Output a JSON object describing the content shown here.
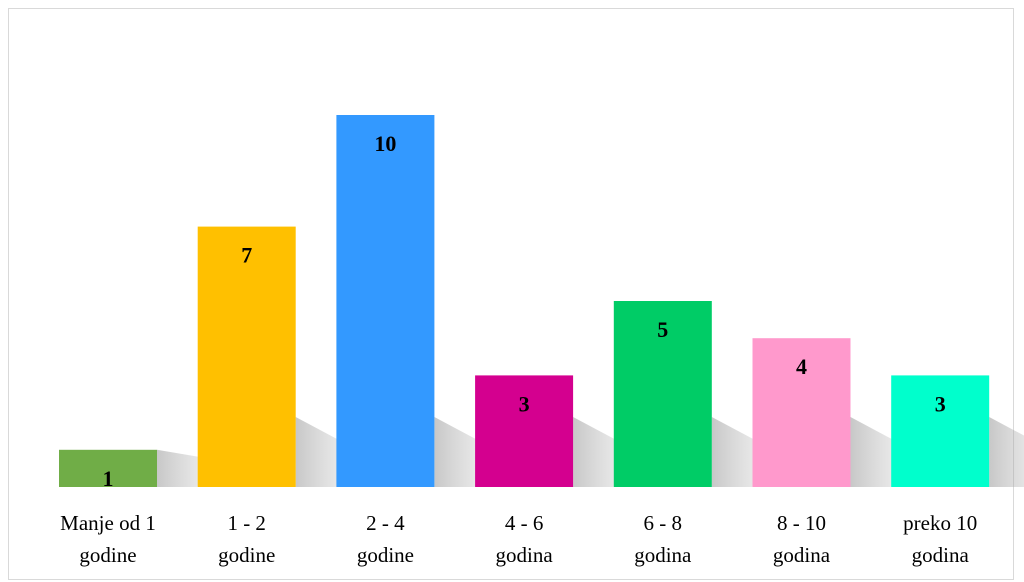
{
  "chart_data": {
    "type": "bar",
    "categories": [
      [
        "Manje od 1",
        "godine"
      ],
      [
        "1 - 2",
        "godine"
      ],
      [
        "2 - 4",
        "godine"
      ],
      [
        "4 - 6",
        "godina"
      ],
      [
        "6 - 8",
        "godina"
      ],
      [
        "8 - 10",
        "godina"
      ],
      [
        "preko 10",
        "godina"
      ]
    ],
    "values": [
      1,
      7,
      10,
      3,
      5,
      4,
      3
    ],
    "colors": [
      "#70ad47",
      "#ffc000",
      "#3399ff",
      "#d4008f",
      "#00cc66",
      "#ff99cc",
      "#00ffcc"
    ],
    "data_labels": true,
    "ylim": [
      0,
      10
    ],
    "grid": false,
    "legend": "none"
  }
}
